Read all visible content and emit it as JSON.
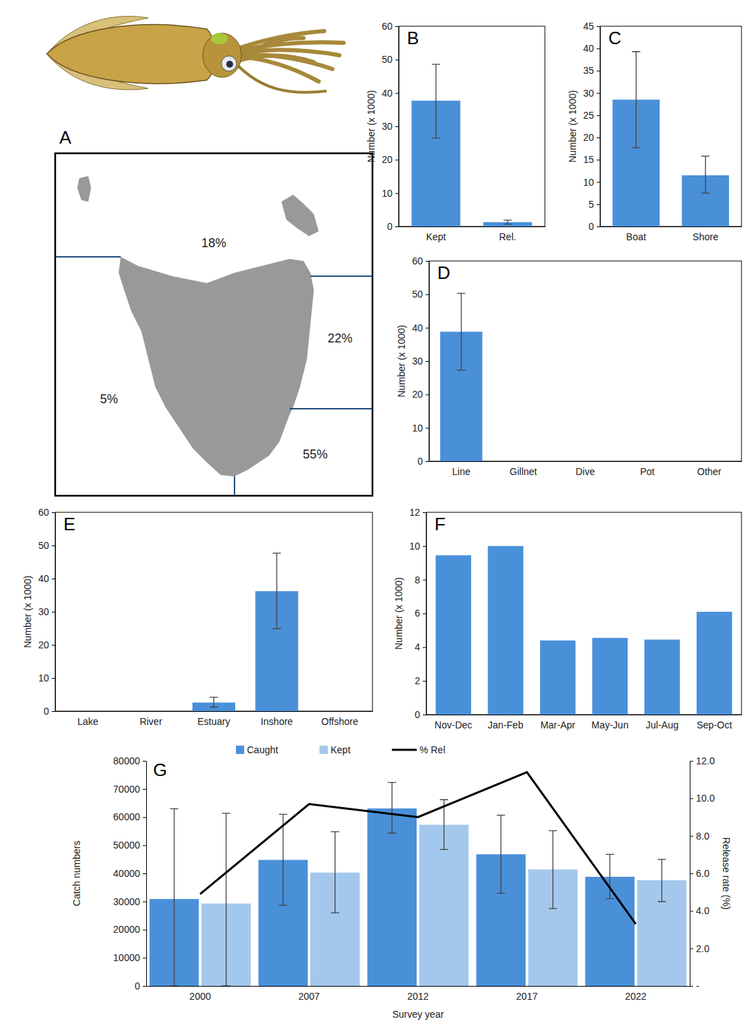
{
  "chart_data": [
    {
      "type": "map",
      "title": "A",
      "values": [
        18,
        22,
        5,
        55
      ],
      "value_labels": [
        "18%",
        "22%",
        "5%",
        "55%"
      ],
      "data_labels": true
    },
    {
      "type": "bar",
      "title": "B",
      "categories": [
        "Kept",
        "Rel."
      ],
      "values": [
        37.7,
        1.3
      ],
      "error_low": [
        26.5,
        0.7
      ],
      "error_high": [
        48.6,
        1.9
      ],
      "color": "#4a90d9",
      "ylim": [
        0,
        60
      ],
      "yticks": [
        0,
        10,
        20,
        30,
        40,
        50,
        60
      ],
      "y_label": "Number (x 1000)"
    },
    {
      "type": "bar",
      "title": "C",
      "categories": [
        "Boat",
        "Shore"
      ],
      "values": [
        28.5,
        11.5
      ],
      "error_low": [
        17.7,
        7.5
      ],
      "error_high": [
        39.3,
        15.8
      ],
      "color": "#4a90d9",
      "ylim": [
        0,
        45
      ],
      "yticks": [
        0,
        5,
        10,
        15,
        20,
        25,
        30,
        35,
        40,
        45
      ],
      "y_label": "Number (x 1000)"
    },
    {
      "type": "bar",
      "title": "D",
      "categories": [
        "Line",
        "Gillnet",
        "Dive",
        "Pot",
        "Other"
      ],
      "values": [
        38.8,
        0,
        0,
        0,
        0
      ],
      "error_low": [
        27.3,
        null,
        null,
        null,
        null
      ],
      "error_high": [
        50.3,
        null,
        null,
        null,
        null
      ],
      "color": "#4a90d9",
      "ylim": [
        0,
        60
      ],
      "yticks": [
        0,
        10,
        20,
        30,
        40,
        50,
        60
      ],
      "y_label": "Number (x 1000)"
    },
    {
      "type": "bar",
      "title": "E",
      "categories": [
        "Lake",
        "River",
        "Estuary",
        "Inshore",
        "Offshore"
      ],
      "values": [
        0,
        0,
        2.6,
        36.2,
        0
      ],
      "error_low": [
        null,
        null,
        1.2,
        24.9,
        null
      ],
      "error_high": [
        null,
        null,
        4.2,
        47.7,
        null
      ],
      "color": "#4a90d9",
      "ylim": [
        0,
        60
      ],
      "yticks": [
        0,
        10,
        20,
        30,
        40,
        50,
        60
      ],
      "y_label": "Number (x 1000)"
    },
    {
      "type": "bar",
      "title": "F",
      "categories": [
        "Nov-Dec",
        "Jan-Feb",
        "Mar-Apr",
        "May-Jun",
        "Jul-Aug",
        "Sep-Oct"
      ],
      "values": [
        9.45,
        10,
        4.4,
        4.55,
        4.45,
        6.1
      ],
      "color": "#4a90d9",
      "ylim": [
        0,
        12
      ],
      "yticks": [
        0,
        2,
        4,
        6,
        8,
        10,
        12
      ],
      "y_label": "Number (x 1000)"
    },
    {
      "type": "bar",
      "title": "G",
      "categories": [
        "2000",
        "2007",
        "2012",
        "2017",
        "2022"
      ],
      "x_label": "Survey year",
      "y_label": "Catch numbers",
      "y2_label": "Release rate (%)",
      "legend": "top",
      "ylim": [
        0,
        80000
      ],
      "yticks": [
        0,
        10000,
        20000,
        30000,
        40000,
        50000,
        60000,
        70000,
        80000
      ],
      "y2lim": [
        0,
        12
      ],
      "y2ticks": [
        {
          "value": 0,
          "label": "-"
        },
        {
          "value": 2,
          "label": "2.0"
        },
        {
          "value": 4,
          "label": "4.0"
        },
        {
          "value": 6,
          "label": "6.0"
        },
        {
          "value": 8,
          "label": "8.0"
        },
        {
          "value": 10,
          "label": "10.0"
        },
        {
          "value": 12,
          "label": "12.0"
        }
      ],
      "series": [
        {
          "name": "Caught",
          "type": "bar",
          "color": "#4a90d9",
          "values": [
            30900,
            44800,
            63100,
            46800,
            38800
          ],
          "error_low": [
            0,
            28700,
            54300,
            33000,
            31000
          ],
          "error_high": [
            63000,
            61000,
            72300,
            60700,
            46800
          ]
        },
        {
          "name": "Kept",
          "type": "bar",
          "color": "#a4c8ec",
          "values": [
            29300,
            40300,
            57300,
            41400,
            37600
          ],
          "error_low": [
            0,
            26000,
            48500,
            27500,
            30000
          ],
          "error_high": [
            61400,
            54800,
            66200,
            55200,
            45000
          ]
        },
        {
          "name": "% Rel",
          "type": "line",
          "axis": "y2",
          "color": "#000000",
          "values": [
            4.9,
            9.7,
            9.0,
            11.4,
            3.3
          ]
        }
      ]
    }
  ]
}
